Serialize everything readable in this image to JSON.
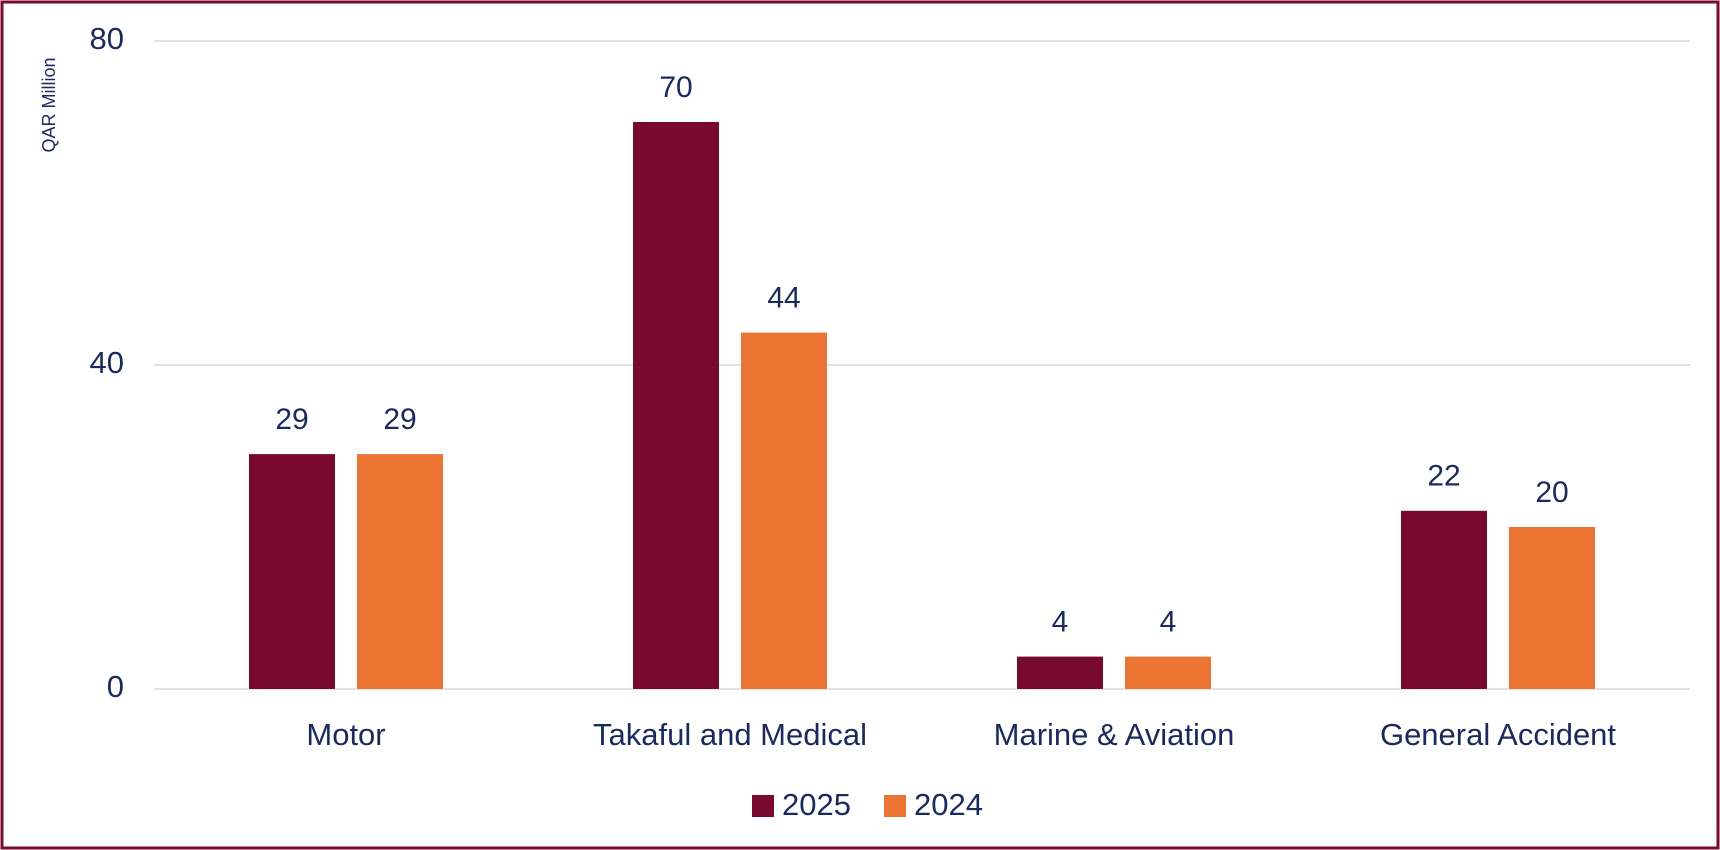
{
  "chart_data": {
    "type": "bar",
    "y_label": "QAR Million",
    "categories": [
      "Motor",
      "Takaful and Medical",
      "Marine & Aviation",
      "General Accident"
    ],
    "series": [
      {
        "name": "2025",
        "color": "#780a2f",
        "values": [
          29,
          70,
          4,
          22
        ]
      },
      {
        "name": "2024",
        "color": "#ec7533",
        "values": [
          29,
          44,
          4,
          20
        ]
      }
    ],
    "ylim": [
      0,
      80
    ],
    "yticks": [
      0,
      40,
      80
    ],
    "grid": true,
    "legend": "bottom"
  }
}
